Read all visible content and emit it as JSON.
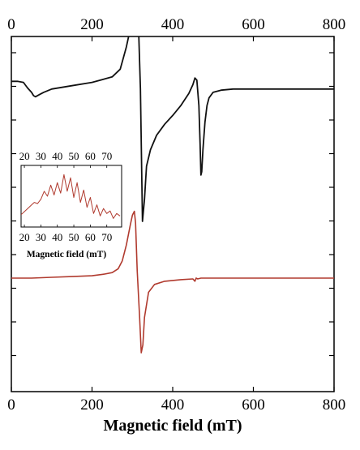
{
  "chart_data": [
    {
      "type": "line",
      "title": "",
      "xlabel": "Magnetic field (mT)",
      "ylabel": "",
      "xlim": [
        0,
        800
      ],
      "x_ticks": [
        0,
        200,
        400,
        600,
        800
      ],
      "x_ticks_top": [
        0,
        200,
        400,
        600,
        800
      ],
      "grid": false,
      "legend": "none",
      "series": [
        {
          "color": "#111111",
          "x": [
            0,
            15,
            30,
            40,
            50,
            55,
            60,
            70,
            80,
            100,
            150,
            200,
            250,
            270,
            285,
            295,
            305,
            310,
            315,
            320,
            325,
            330,
            335,
            345,
            360,
            380,
            400,
            420,
            440,
            450,
            455,
            460,
            465,
            468,
            470,
            472,
            475,
            480,
            485,
            490,
            500,
            520,
            550,
            600,
            700,
            800
          ],
          "y": [
            0.27,
            0.27,
            0.26,
            0.21,
            0.17,
            0.14,
            0.13,
            0.15,
            0.17,
            0.2,
            0.23,
            0.26,
            0.31,
            0.38,
            0.58,
            0.75,
            0.85,
            0.88,
            0.8,
            0.2,
            -1.0,
            -0.8,
            -0.5,
            -0.35,
            -0.22,
            -0.12,
            -0.04,
            0.05,
            0.16,
            0.24,
            0.3,
            0.28,
            0.05,
            -0.3,
            -0.58,
            -0.55,
            -0.35,
            -0.1,
            0.05,
            0.12,
            0.17,
            0.19,
            0.2,
            0.2,
            0.2,
            0.2
          ]
        },
        {
          "color": "#b03a2e",
          "x": [
            0,
            50,
            100,
            150,
            200,
            230,
            250,
            265,
            275,
            285,
            295,
            300,
            305,
            308,
            312,
            318,
            322,
            326,
            330,
            340,
            355,
            380,
            420,
            450,
            455,
            458,
            462,
            470,
            500,
            550,
            600,
            700,
            800
          ],
          "y": [
            0.0,
            0.0,
            0.01,
            0.02,
            0.03,
            0.05,
            0.07,
            0.12,
            0.22,
            0.42,
            0.68,
            0.8,
            0.85,
            0.7,
            0.1,
            -0.5,
            -0.95,
            -0.85,
            -0.5,
            -0.18,
            -0.08,
            -0.04,
            -0.02,
            -0.01,
            -0.04,
            0.0,
            -0.01,
            0.0,
            0.0,
            0.0,
            0.0,
            0.0,
            0.0
          ]
        }
      ]
    },
    {
      "type": "line",
      "title": "",
      "xlabel": "Magnetic field (mT)",
      "ylabel": "",
      "xlim": [
        18,
        79
      ],
      "x_ticks": [
        20,
        30,
        40,
        50,
        60,
        70
      ],
      "x_ticks_top": [
        20,
        30,
        40,
        50,
        60,
        70
      ],
      "grid": false,
      "legend": "none",
      "series": [
        {
          "color": "#b03a2e",
          "x": [
            18,
            20,
            22,
            24,
            26,
            28,
            30,
            32,
            34,
            36,
            38,
            40,
            42,
            44,
            46,
            48,
            50,
            52,
            54,
            56,
            58,
            60,
            62,
            64,
            66,
            68,
            70,
            72,
            74,
            76,
            78
          ],
          "y": [
            0.2,
            0.25,
            0.3,
            0.35,
            0.4,
            0.38,
            0.45,
            0.58,
            0.5,
            0.68,
            0.52,
            0.72,
            0.55,
            0.85,
            0.58,
            0.8,
            0.48,
            0.72,
            0.4,
            0.6,
            0.32,
            0.48,
            0.22,
            0.36,
            0.18,
            0.3,
            0.22,
            0.26,
            0.14,
            0.22,
            0.18
          ]
        }
      ]
    }
  ]
}
